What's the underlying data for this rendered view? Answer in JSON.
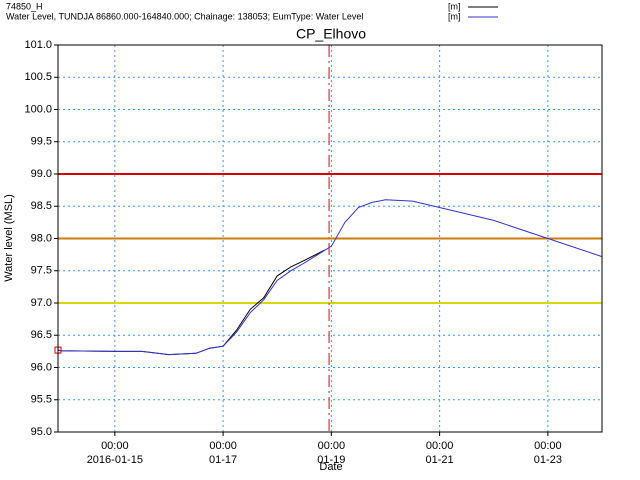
{
  "chart_data": {
    "type": "line",
    "title": "CP_Elhovo",
    "y_label": "Water level (MSL)",
    "x_label": "Date",
    "xlim": [
      "2016-01-13 22:48",
      "2016-01-24 00:00"
    ],
    "xticks": [
      {
        "value": "2016-01-15 00:00",
        "label": "00:00"
      },
      {
        "value": "2016-01-17 00:00",
        "label": "00:00"
      },
      {
        "value": "2016-01-19 00:00",
        "label": "00:00"
      },
      {
        "value": "2016-01-21 00:00",
        "label": "00:00"
      },
      {
        "value": "2016-01-23 00:00",
        "label": "00:00"
      }
    ],
    "xtick_sublabels": [
      "2016-01-15",
      "01-17",
      "01-19",
      "01-21",
      "01-23"
    ],
    "ylim": [
      95,
      101
    ],
    "yticks": [
      {
        "value": 95,
        "label": "95.0"
      },
      {
        "value": 95.5,
        "label": "95.5"
      },
      {
        "value": 96,
        "label": "96.0"
      },
      {
        "value": 96.5,
        "label": "96.5"
      },
      {
        "value": 97,
        "label": "97.0"
      },
      {
        "value": 97.5,
        "label": "97.5"
      },
      {
        "value": 98,
        "label": "98.0"
      },
      {
        "value": 98.5,
        "label": "98.5"
      },
      {
        "value": 99,
        "label": "99.0"
      },
      {
        "value": 99.5,
        "label": "99.5"
      },
      {
        "value": 100,
        "label": "100.0"
      },
      {
        "value": 100.5,
        "label": "100.5"
      },
      {
        "value": 101,
        "label": "101.0"
      }
    ],
    "grid": true,
    "hlines": [
      {
        "value": 99,
        "color": "#d40000"
      },
      {
        "value": 98,
        "color": "#d07a00"
      },
      {
        "value": 97,
        "color": "#d8d800"
      }
    ],
    "vline": {
      "x": "2016-01-18 23:00",
      "color": "#e06060"
    },
    "series": [
      {
        "name": "74850_H",
        "unit": "[m]",
        "color": "#000000",
        "x": [
          "2016-01-13 22:48",
          "2016-01-14 00:00",
          "2016-01-15 00:00",
          "2016-01-15 12:00",
          "2016-01-16 00:00",
          "2016-01-16 12:00",
          "2016-01-16 18:00",
          "2016-01-17 00:00",
          "2016-01-17 06:00",
          "2016-01-17 12:00",
          "2016-01-17 18:00",
          "2016-01-18 00:00",
          "2016-01-18 06:00",
          "2016-01-18 12:00",
          "2016-01-18 21:00"
        ],
        "values": [
          96.27,
          96.26,
          96.25,
          96.25,
          96.2,
          96.22,
          96.3,
          96.33,
          96.58,
          96.9,
          97.08,
          97.42,
          97.56,
          97.66,
          97.82
        ]
      },
      {
        "name": "Water Level, TUNDJA 86860.000-164840.000; Chainage: 138053; EumType: Water Level",
        "unit": "[m]",
        "color": "#3333cc",
        "x": [
          "2016-01-13 22:48",
          "2016-01-14 00:00",
          "2016-01-15 00:00",
          "2016-01-15 12:00",
          "2016-01-16 00:00",
          "2016-01-16 12:00",
          "2016-01-16 18:00",
          "2016-01-17 00:00",
          "2016-01-17 06:00",
          "2016-01-17 12:00",
          "2016-01-17 18:00",
          "2016-01-18 00:00",
          "2016-01-18 06:00",
          "2016-01-18 12:00",
          "2016-01-18 18:00",
          "2016-01-19 00:00",
          "2016-01-19 06:00",
          "2016-01-19 12:00",
          "2016-01-19 18:00",
          "2016-01-20 00:00",
          "2016-01-20 12:00",
          "2016-01-21 00:00",
          "2016-01-22 00:00",
          "2016-01-23 00:00",
          "2016-01-24 00:00"
        ],
        "values": [
          96.27,
          96.26,
          96.25,
          96.25,
          96.2,
          96.22,
          96.3,
          96.33,
          96.55,
          96.85,
          97.05,
          97.35,
          97.5,
          97.62,
          97.75,
          97.88,
          98.25,
          98.48,
          98.56,
          98.6,
          98.58,
          98.48,
          98.28,
          98.0,
          97.72
        ]
      }
    ]
  }
}
